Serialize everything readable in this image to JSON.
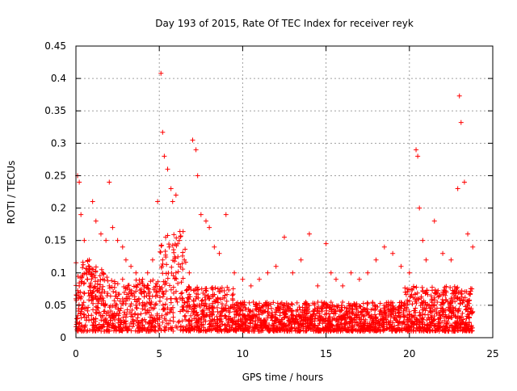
{
  "chart_data": {
    "type": "scatter",
    "title": "Day 193 of 2015, Rate Of TEC Index for receiver reyk",
    "xlabel": "GPS time / hours",
    "ylabel": "ROTI / TECUs",
    "xlim": [
      0,
      25
    ],
    "ylim": [
      0,
      0.45
    ],
    "xticks": [
      "0",
      "5",
      "10",
      "15",
      "20",
      "25"
    ],
    "yticks": [
      "0",
      "0.05",
      "0.1",
      "0.15",
      "0.2",
      "0.25",
      "0.3",
      "0.35",
      "0.4",
      "0.45"
    ],
    "grid": true,
    "marker": "+",
    "color": "#ff0000",
    "series": [
      {
        "x": [
          0.1,
          0.2,
          0.3,
          0.5,
          0.8,
          1.0,
          1.2,
          1.5,
          1.8,
          2.0,
          2.2,
          2.5,
          2.8,
          3.0,
          3.3,
          3.6,
          4.0,
          4.3,
          4.6,
          4.9,
          5.1,
          5.2,
          5.3,
          5.5,
          5.7,
          5.8,
          6.0,
          6.2,
          6.5,
          6.8,
          7.0,
          7.2,
          7.3,
          7.5,
          7.8,
          8.0,
          8.3,
          8.6,
          9.0,
          9.5,
          10.0,
          10.5,
          11.0,
          11.5,
          12.0,
          12.5,
          13.0,
          13.5,
          14.0,
          14.5,
          15.0,
          15.3,
          15.6,
          16.0,
          16.5,
          17.0,
          17.5,
          18.0,
          18.5,
          19.0,
          19.5,
          20.0,
          20.4,
          20.5,
          20.6,
          20.8,
          21.0,
          21.5,
          22.0,
          22.5,
          22.9,
          23.0,
          23.1,
          23.3,
          23.5,
          23.8
        ],
        "y": [
          0.25,
          0.24,
          0.19,
          0.15,
          0.12,
          0.21,
          0.18,
          0.16,
          0.15,
          0.24,
          0.17,
          0.15,
          0.14,
          0.12,
          0.11,
          0.1,
          0.09,
          0.1,
          0.12,
          0.21,
          0.408,
          0.317,
          0.28,
          0.26,
          0.23,
          0.21,
          0.22,
          0.15,
          0.12,
          0.1,
          0.305,
          0.29,
          0.25,
          0.19,
          0.18,
          0.17,
          0.14,
          0.13,
          0.19,
          0.1,
          0.09,
          0.08,
          0.09,
          0.1,
          0.11,
          0.155,
          0.1,
          0.12,
          0.16,
          0.08,
          0.145,
          0.1,
          0.09,
          0.08,
          0.1,
          0.09,
          0.1,
          0.12,
          0.14,
          0.13,
          0.11,
          0.1,
          0.29,
          0.28,
          0.2,
          0.15,
          0.12,
          0.18,
          0.13,
          0.12,
          0.23,
          0.373,
          0.332,
          0.24,
          0.16,
          0.14
        ]
      },
      {
        "x": [
          0.0,
          0.2,
          0.4,
          0.7,
          1.0,
          1.3,
          1.6,
          2.0,
          2.4,
          2.8,
          3.2,
          3.6,
          4.0,
          4.4,
          4.8,
          5.2,
          5.6,
          6.0,
          6.4,
          6.8,
          7.2,
          7.6,
          8.0,
          8.5,
          9.0,
          9.5,
          10.0,
          10.5,
          11.0,
          11.5,
          12.0,
          12.5,
          13.0,
          13.5,
          14.0,
          14.5,
          15.0,
          15.5,
          16.0,
          16.5,
          17.0,
          17.5,
          18.0,
          18.5,
          19.0,
          19.5,
          20.0,
          20.5,
          21.0,
          21.5,
          22.0,
          22.5,
          23.0,
          23.5,
          23.8
        ],
        "y": [
          0.06,
          0.08,
          0.05,
          0.09,
          0.07,
          0.06,
          0.1,
          0.08,
          0.07,
          0.09,
          0.06,
          0.08,
          0.05,
          0.06,
          0.07,
          0.12,
          0.14,
          0.1,
          0.06,
          0.05,
          0.06,
          0.04,
          0.05,
          0.04,
          0.05,
          0.04,
          0.03,
          0.04,
          0.03,
          0.04,
          0.03,
          0.04,
          0.03,
          0.03,
          0.02,
          0.03,
          0.03,
          0.04,
          0.03,
          0.03,
          0.03,
          0.04,
          0.03,
          0.04,
          0.04,
          0.05,
          0.04,
          0.06,
          0.05,
          0.05,
          0.04,
          0.04,
          0.06,
          0.05,
          0.04
        ]
      }
    ]
  }
}
